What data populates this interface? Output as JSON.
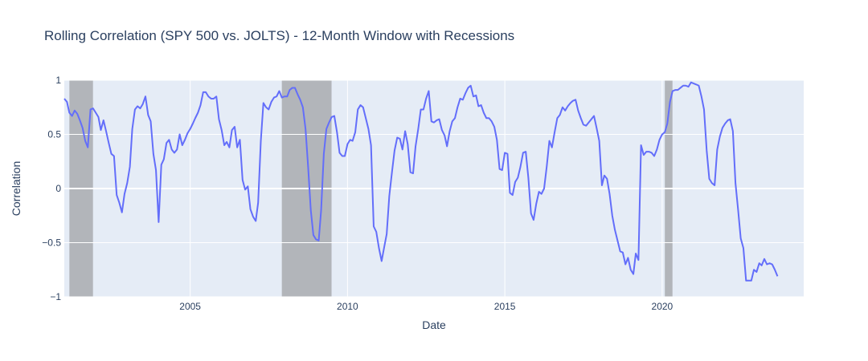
{
  "chart_data": {
    "type": "line",
    "title": "Rolling Correlation (SPY 500 vs. JOLTS) - 12-Month Window with Recessions",
    "xlabel": "Date",
    "ylabel": "Correlation",
    "xlim": [
      "2001-01-01",
      "2024-07-01"
    ],
    "ylim": [
      -1,
      1
    ],
    "x_ticks": [
      {
        "date": "2005-01-01",
        "label": "2005"
      },
      {
        "date": "2010-01-01",
        "label": "2010"
      },
      {
        "date": "2015-01-01",
        "label": "2015"
      },
      {
        "date": "2020-01-01",
        "label": "2020"
      }
    ],
    "y_ticks": [
      {
        "value": 1,
        "label": "1"
      },
      {
        "value": 0.5,
        "label": "0.5"
      },
      {
        "value": 0,
        "label": "0"
      },
      {
        "value": -0.5,
        "label": "−0.5"
      },
      {
        "value": -1,
        "label": "−1"
      }
    ],
    "grid": true,
    "colors": {
      "plot_background": "#e5ecf6",
      "grid": "#ffffff",
      "line": "#636efa",
      "recession": "#a9abaf"
    },
    "recessions": [
      {
        "start": "2001-03-01",
        "end": "2001-11-30"
      },
      {
        "start": "2007-12-01",
        "end": "2009-06-30"
      },
      {
        "start": "2020-02-01",
        "end": "2020-04-30"
      }
    ],
    "series": [
      {
        "points": [
          [
            "2001-01",
            0.83
          ],
          [
            "2001-02",
            0.8
          ],
          [
            "2001-03",
            0.7
          ],
          [
            "2001-04",
            0.67
          ],
          [
            "2001-05",
            0.72
          ],
          [
            "2001-06",
            0.69
          ],
          [
            "2001-07",
            0.63
          ],
          [
            "2001-08",
            0.56
          ],
          [
            "2001-09",
            0.44
          ],
          [
            "2001-10",
            0.38
          ],
          [
            "2001-11",
            0.73
          ],
          [
            "2001-12",
            0.74
          ],
          [
            "2002-01",
            0.7
          ],
          [
            "2002-02",
            0.66
          ],
          [
            "2002-03",
            0.54
          ],
          [
            "2002-04",
            0.63
          ],
          [
            "2002-05",
            0.53
          ],
          [
            "2002-06",
            0.42
          ],
          [
            "2002-07",
            0.32
          ],
          [
            "2002-08",
            0.3
          ],
          [
            "2002-09",
            -0.06
          ],
          [
            "2002-10",
            -0.13
          ],
          [
            "2002-11",
            -0.22
          ],
          [
            "2002-12",
            -0.05
          ],
          [
            "2003-01",
            0.05
          ],
          [
            "2003-02",
            0.2
          ],
          [
            "2003-03",
            0.55
          ],
          [
            "2003-04",
            0.73
          ],
          [
            "2003-05",
            0.76
          ],
          [
            "2003-06",
            0.74
          ],
          [
            "2003-07",
            0.78
          ],
          [
            "2003-08",
            0.85
          ],
          [
            "2003-09",
            0.68
          ],
          [
            "2003-10",
            0.62
          ],
          [
            "2003-11",
            0.32
          ],
          [
            "2003-12",
            0.17
          ],
          [
            "2004-01",
            -0.31
          ],
          [
            "2004-02",
            0.22
          ],
          [
            "2004-03",
            0.27
          ],
          [
            "2004-04",
            0.42
          ],
          [
            "2004-05",
            0.45
          ],
          [
            "2004-06",
            0.36
          ],
          [
            "2004-07",
            0.33
          ],
          [
            "2004-08",
            0.36
          ],
          [
            "2004-09",
            0.5
          ],
          [
            "2004-10",
            0.4
          ],
          [
            "2004-11",
            0.45
          ],
          [
            "2004-12",
            0.51
          ],
          [
            "2005-01",
            0.55
          ],
          [
            "2005-02",
            0.6
          ],
          [
            "2005-03",
            0.65
          ],
          [
            "2005-04",
            0.7
          ],
          [
            "2005-05",
            0.77
          ],
          [
            "2005-06",
            0.89
          ],
          [
            "2005-07",
            0.89
          ],
          [
            "2005-08",
            0.85
          ],
          [
            "2005-09",
            0.83
          ],
          [
            "2005-10",
            0.83
          ],
          [
            "2005-11",
            0.85
          ],
          [
            "2005-12",
            0.64
          ],
          [
            "2006-01",
            0.54
          ],
          [
            "2006-02",
            0.4
          ],
          [
            "2006-03",
            0.43
          ],
          [
            "2006-04",
            0.38
          ],
          [
            "2006-05",
            0.54
          ],
          [
            "2006-06",
            0.57
          ],
          [
            "2006-07",
            0.38
          ],
          [
            "2006-08",
            0.45
          ],
          [
            "2006-09",
            0.08
          ],
          [
            "2006-10",
            -0.01
          ],
          [
            "2006-11",
            0.02
          ],
          [
            "2006-12",
            -0.19
          ],
          [
            "2007-01",
            -0.26
          ],
          [
            "2007-02",
            -0.3
          ],
          [
            "2007-03",
            -0.13
          ],
          [
            "2007-04",
            0.44
          ],
          [
            "2007-05",
            0.79
          ],
          [
            "2007-06",
            0.75
          ],
          [
            "2007-07",
            0.73
          ],
          [
            "2007-08",
            0.8
          ],
          [
            "2007-09",
            0.84
          ],
          [
            "2007-10",
            0.85
          ],
          [
            "2007-11",
            0.9
          ],
          [
            "2007-12",
            0.84
          ],
          [
            "2008-01",
            0.85
          ],
          [
            "2008-02",
            0.85
          ],
          [
            "2008-03",
            0.91
          ],
          [
            "2008-04",
            0.93
          ],
          [
            "2008-05",
            0.93
          ],
          [
            "2008-06",
            0.87
          ],
          [
            "2008-07",
            0.82
          ],
          [
            "2008-08",
            0.75
          ],
          [
            "2008-09",
            0.55
          ],
          [
            "2008-10",
            0.2
          ],
          [
            "2008-11",
            -0.2
          ],
          [
            "2008-12",
            -0.43
          ],
          [
            "2009-01",
            -0.47
          ],
          [
            "2009-02",
            -0.48
          ],
          [
            "2009-03",
            -0.2
          ],
          [
            "2009-04",
            0.32
          ],
          [
            "2009-05",
            0.55
          ],
          [
            "2009-06",
            0.61
          ],
          [
            "2009-07",
            0.66
          ],
          [
            "2009-08",
            0.67
          ],
          [
            "2009-09",
            0.52
          ],
          [
            "2009-10",
            0.33
          ],
          [
            "2009-11",
            0.3
          ],
          [
            "2009-12",
            0.3
          ],
          [
            "2010-01",
            0.41
          ],
          [
            "2010-02",
            0.45
          ],
          [
            "2010-03",
            0.44
          ],
          [
            "2010-04",
            0.52
          ],
          [
            "2010-05",
            0.73
          ],
          [
            "2010-06",
            0.77
          ],
          [
            "2010-07",
            0.75
          ],
          [
            "2010-08",
            0.65
          ],
          [
            "2010-09",
            0.55
          ],
          [
            "2010-10",
            0.4
          ],
          [
            "2010-11",
            -0.35
          ],
          [
            "2010-12",
            -0.4
          ],
          [
            "2011-01",
            -0.55
          ],
          [
            "2011-02",
            -0.67
          ],
          [
            "2011-03",
            -0.55
          ],
          [
            "2011-04",
            -0.42
          ],
          [
            "2011-05",
            -0.07
          ],
          [
            "2011-06",
            0.15
          ],
          [
            "2011-07",
            0.35
          ],
          [
            "2011-08",
            0.47
          ],
          [
            "2011-09",
            0.46
          ],
          [
            "2011-10",
            0.36
          ],
          [
            "2011-11",
            0.53
          ],
          [
            "2011-12",
            0.41
          ],
          [
            "2012-01",
            0.15
          ],
          [
            "2012-02",
            0.14
          ],
          [
            "2012-03",
            0.39
          ],
          [
            "2012-04",
            0.55
          ],
          [
            "2012-05",
            0.73
          ],
          [
            "2012-06",
            0.73
          ],
          [
            "2012-07",
            0.83
          ],
          [
            "2012-08",
            0.9
          ],
          [
            "2012-09",
            0.62
          ],
          [
            "2012-10",
            0.61
          ],
          [
            "2012-11",
            0.63
          ],
          [
            "2012-12",
            0.64
          ],
          [
            "2013-01",
            0.54
          ],
          [
            "2013-02",
            0.49
          ],
          [
            "2013-03",
            0.39
          ],
          [
            "2013-04",
            0.53
          ],
          [
            "2013-05",
            0.62
          ],
          [
            "2013-06",
            0.65
          ],
          [
            "2013-07",
            0.75
          ],
          [
            "2013-08",
            0.83
          ],
          [
            "2013-09",
            0.82
          ],
          [
            "2013-10",
            0.88
          ],
          [
            "2013-11",
            0.93
          ],
          [
            "2013-12",
            0.95
          ],
          [
            "2014-01",
            0.85
          ],
          [
            "2014-02",
            0.86
          ],
          [
            "2014-03",
            0.76
          ],
          [
            "2014-04",
            0.77
          ],
          [
            "2014-05",
            0.7
          ],
          [
            "2014-06",
            0.65
          ],
          [
            "2014-07",
            0.65
          ],
          [
            "2014-08",
            0.62
          ],
          [
            "2014-09",
            0.57
          ],
          [
            "2014-10",
            0.45
          ],
          [
            "2014-11",
            0.18
          ],
          [
            "2014-12",
            0.17
          ],
          [
            "2015-01",
            0.33
          ],
          [
            "2015-02",
            0.32
          ],
          [
            "2015-03",
            -0.04
          ],
          [
            "2015-04",
            -0.06
          ],
          [
            "2015-05",
            0.06
          ],
          [
            "2015-06",
            0.1
          ],
          [
            "2015-07",
            0.2
          ],
          [
            "2015-08",
            0.33
          ],
          [
            "2015-09",
            0.34
          ],
          [
            "2015-10",
            0.1
          ],
          [
            "2015-11",
            -0.23
          ],
          [
            "2015-12",
            -0.29
          ],
          [
            "2016-01",
            -0.14
          ],
          [
            "2016-02",
            -0.03
          ],
          [
            "2016-03",
            -0.05
          ],
          [
            "2016-04",
            0.0
          ],
          [
            "2016-05",
            0.2
          ],
          [
            "2016-06",
            0.44
          ],
          [
            "2016-07",
            0.38
          ],
          [
            "2016-08",
            0.52
          ],
          [
            "2016-09",
            0.65
          ],
          [
            "2016-10",
            0.68
          ],
          [
            "2016-11",
            0.75
          ],
          [
            "2016-12",
            0.72
          ],
          [
            "2017-01",
            0.76
          ],
          [
            "2017-02",
            0.79
          ],
          [
            "2017-03",
            0.81
          ],
          [
            "2017-04",
            0.82
          ],
          [
            "2017-05",
            0.72
          ],
          [
            "2017-06",
            0.65
          ],
          [
            "2017-07",
            0.59
          ],
          [
            "2017-08",
            0.58
          ],
          [
            "2017-09",
            0.61
          ],
          [
            "2017-10",
            0.64
          ],
          [
            "2017-11",
            0.67
          ],
          [
            "2017-12",
            0.56
          ],
          [
            "2018-01",
            0.44
          ],
          [
            "2018-02",
            0.03
          ],
          [
            "2018-03",
            0.12
          ],
          [
            "2018-04",
            0.09
          ],
          [
            "2018-05",
            -0.05
          ],
          [
            "2018-06",
            -0.25
          ],
          [
            "2018-07",
            -0.38
          ],
          [
            "2018-08",
            -0.48
          ],
          [
            "2018-09",
            -0.58
          ],
          [
            "2018-10",
            -0.59
          ],
          [
            "2018-11",
            -0.7
          ],
          [
            "2018-12",
            -0.64
          ],
          [
            "2019-01",
            -0.75
          ],
          [
            "2019-02",
            -0.79
          ],
          [
            "2019-03",
            -0.6
          ],
          [
            "2019-04",
            -0.66
          ],
          [
            "2019-05",
            0.4
          ],
          [
            "2019-06",
            0.31
          ],
          [
            "2019-07",
            0.34
          ],
          [
            "2019-08",
            0.34
          ],
          [
            "2019-09",
            0.33
          ],
          [
            "2019-10",
            0.3
          ],
          [
            "2019-11",
            0.36
          ],
          [
            "2019-12",
            0.45
          ],
          [
            "2020-01",
            0.5
          ],
          [
            "2020-02",
            0.52
          ],
          [
            "2020-03",
            0.6
          ],
          [
            "2020-04",
            0.8
          ],
          [
            "2020-05",
            0.9
          ],
          [
            "2020-06",
            0.91
          ],
          [
            "2020-07",
            0.91
          ],
          [
            "2020-08",
            0.93
          ],
          [
            "2020-09",
            0.95
          ],
          [
            "2020-10",
            0.95
          ],
          [
            "2020-11",
            0.94
          ],
          [
            "2020-12",
            0.98
          ],
          [
            "2021-01",
            0.97
          ],
          [
            "2021-02",
            0.96
          ],
          [
            "2021-03",
            0.95
          ],
          [
            "2021-04",
            0.85
          ],
          [
            "2021-05",
            0.73
          ],
          [
            "2021-06",
            0.35
          ],
          [
            "2021-07",
            0.09
          ],
          [
            "2021-08",
            0.05
          ],
          [
            "2021-09",
            0.03
          ],
          [
            "2021-10",
            0.36
          ],
          [
            "2021-11",
            0.48
          ],
          [
            "2021-12",
            0.56
          ],
          [
            "2022-01",
            0.6
          ],
          [
            "2022-02",
            0.63
          ],
          [
            "2022-03",
            0.64
          ],
          [
            "2022-04",
            0.53
          ],
          [
            "2022-05",
            0.05
          ],
          [
            "2022-06",
            -0.2
          ],
          [
            "2022-07",
            -0.46
          ],
          [
            "2022-08",
            -0.55
          ],
          [
            "2022-09",
            -0.85
          ],
          [
            "2022-10",
            -0.85
          ],
          [
            "2022-11",
            -0.85
          ],
          [
            "2022-12",
            -0.75
          ],
          [
            "2023-01",
            -0.77
          ],
          [
            "2023-02",
            -0.69
          ],
          [
            "2023-03",
            -0.71
          ],
          [
            "2023-04",
            -0.65
          ],
          [
            "2023-05",
            -0.7
          ],
          [
            "2023-06",
            -0.69
          ],
          [
            "2023-07",
            -0.7
          ],
          [
            "2023-08",
            -0.75
          ],
          [
            "2023-09",
            -0.81
          ]
        ]
      }
    ]
  }
}
